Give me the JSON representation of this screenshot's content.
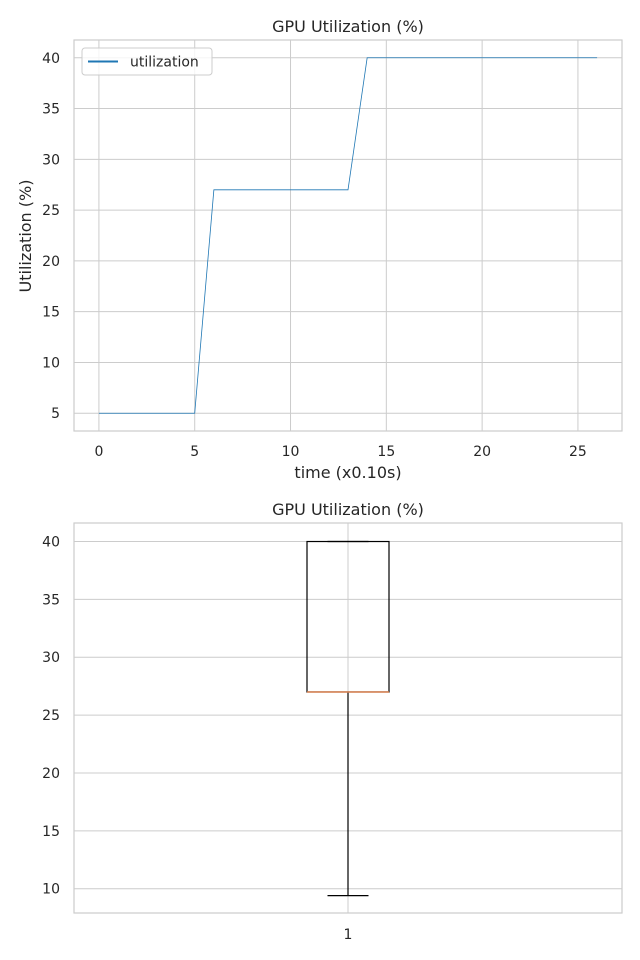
{
  "colors": {
    "line": "#1f77b4",
    "median": "#dd8452",
    "box": "#000000"
  },
  "chart_data": [
    {
      "type": "line",
      "title": "GPU Utilization (%)",
      "xlabel": "time (x0.10s)",
      "ylabel": "Utilization (%)",
      "xlim": [
        -1.3,
        27.3
      ],
      "ylim": [
        3.25,
        41.75
      ],
      "xticks": [
        0,
        5,
        10,
        15,
        20,
        25
      ],
      "yticks": [
        5,
        10,
        15,
        20,
        25,
        30,
        35,
        40
      ],
      "grid": true,
      "legend": {
        "placement": "top-left",
        "entries": [
          "utilization"
        ]
      },
      "series": [
        {
          "name": "utilization",
          "x": [
            0,
            1,
            2,
            3,
            4,
            5,
            6,
            7,
            8,
            9,
            10,
            11,
            12,
            13,
            14,
            15,
            16,
            17,
            18,
            19,
            20,
            21,
            22,
            23,
            24,
            25,
            26
          ],
          "y": [
            5,
            5,
            5,
            5,
            5,
            5,
            27,
            27,
            27,
            27,
            27,
            27,
            27,
            27,
            40,
            40,
            40,
            40,
            40,
            40,
            40,
            40,
            40,
            40,
            40,
            40,
            40
          ]
        }
      ]
    },
    {
      "type": "box",
      "title": "GPU Utilization (%)",
      "categories": [
        "1"
      ],
      "ylim": [
        7.9,
        41.6
      ],
      "yticks": [
        10,
        15,
        20,
        25,
        30,
        35,
        40
      ],
      "grid": true,
      "box": {
        "whisker_low": 9.4,
        "q1": 27,
        "median": 27,
        "q3": 40,
        "whisker_high": 40
      }
    }
  ]
}
